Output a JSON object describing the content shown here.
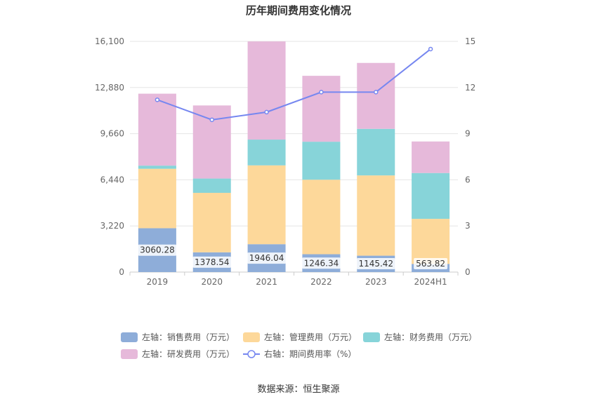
{
  "chart_data": {
    "type": "bar",
    "stacked": true,
    "title": "历年期间费用变化情况",
    "categories": [
      "2019",
      "2020",
      "2021",
      "2022",
      "2023",
      "2024H1"
    ],
    "left_axis": {
      "min": 0,
      "max": 16100,
      "ticks": [
        "0",
        "3,220",
        "6,440",
        "9,660",
        "12,880",
        "16,100"
      ],
      "tick_values": [
        0,
        3220,
        6440,
        9660,
        12880,
        16100
      ]
    },
    "right_axis": {
      "min": 0,
      "max": 15,
      "ticks": [
        "0",
        "3",
        "6",
        "9",
        "12",
        "15"
      ],
      "tick_values": [
        0,
        3,
        6,
        9,
        12,
        15
      ]
    },
    "series": [
      {
        "name": "左轴：销售费用（万元）",
        "color": "#8eadd9",
        "values": [
          3060.28,
          1378.54,
          1946.04,
          1246.34,
          1145.42,
          563.82
        ],
        "labels": [
          "3060.28",
          "1378.54",
          "1946.04",
          "1246.34",
          "1145.42",
          "563.82"
        ]
      },
      {
        "name": "左轴：管理费用（万元）",
        "color": "#fdd89a",
        "values": [
          4150,
          4150,
          5500,
          5200,
          5600,
          3150
        ],
        "labels": []
      },
      {
        "name": "左轴：财务费用（万元）",
        "color": "#87d4d9",
        "values": [
          220,
          1000,
          1800,
          2650,
          3250,
          3200
        ],
        "labels": []
      },
      {
        "name": "左轴：研发费用（万元）",
        "color": "#e6b9da",
        "values": [
          5020,
          5100,
          6850,
          4600,
          4600,
          2200
        ],
        "labels": []
      }
    ],
    "line_series": {
      "name": "右轴：期间费用率（%）",
      "color": "#7687f0",
      "values": [
        11.2,
        9.9,
        10.4,
        11.7,
        11.7,
        14.5
      ]
    },
    "grid": true,
    "legend_position": "bottom"
  },
  "source": "数据来源：恒生聚源"
}
